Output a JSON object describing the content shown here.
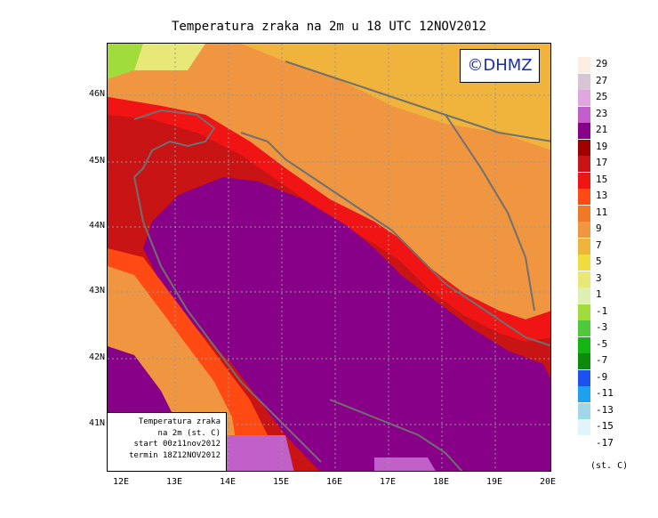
{
  "title": "Temperatura zraka na 2m u 18 UTC 12NOV2012",
  "logo_text": "©DHMZ",
  "infobox": {
    "line1": "Temperatura zraka",
    "line2": "na 2m (st. C)",
    "line3": "start 00z11nov2012",
    "line4": "termin 18Z12NOV2012"
  },
  "latitude_labels": [
    "46N",
    "45N",
    "44N",
    "43N",
    "42N",
    "41N"
  ],
  "longitude_labels": [
    "12E",
    "13E",
    "14E",
    "15E",
    "16E",
    "17E",
    "18E",
    "19E",
    "20E"
  ],
  "legend": {
    "unit": "(st. C)",
    "entries": [
      {
        "label": "29",
        "color": "#fbeee0"
      },
      {
        "label": "27",
        "color": "#d9c3d6"
      },
      {
        "label": "25",
        "color": "#e0a6e0"
      },
      {
        "label": "23",
        "color": "#c060c8"
      },
      {
        "label": "21",
        "color": "#880088"
      },
      {
        "label": "19",
        "color": "#a00000"
      },
      {
        "label": "17",
        "color": "#c81414"
      },
      {
        "label": "15",
        "color": "#f01414"
      },
      {
        "label": "13",
        "color": "#ff4a14"
      },
      {
        "label": "11",
        "color": "#f07828"
      },
      {
        "label": "9",
        "color": "#f09640"
      },
      {
        "label": "7",
        "color": "#f0b43c"
      },
      {
        "label": "5",
        "color": "#f0dc3c"
      },
      {
        "label": "3",
        "color": "#e8e878"
      },
      {
        "label": "1",
        "color": "#dcf0b4"
      },
      {
        "label": "-1",
        "color": "#a0dc3c"
      },
      {
        "label": "-3",
        "color": "#50c83c"
      },
      {
        "label": "-5",
        "color": "#14b414"
      },
      {
        "label": "-7",
        "color": "#0a8c0a"
      },
      {
        "label": "-9",
        "color": "#1e50f0"
      },
      {
        "label": "-11",
        "color": "#1ea0f0"
      },
      {
        "label": "-13",
        "color": "#a0d8e8"
      },
      {
        "label": "-15",
        "color": "#e0f4fa"
      },
      {
        "label": "-17",
        "color": "#ffffff"
      }
    ]
  }
}
